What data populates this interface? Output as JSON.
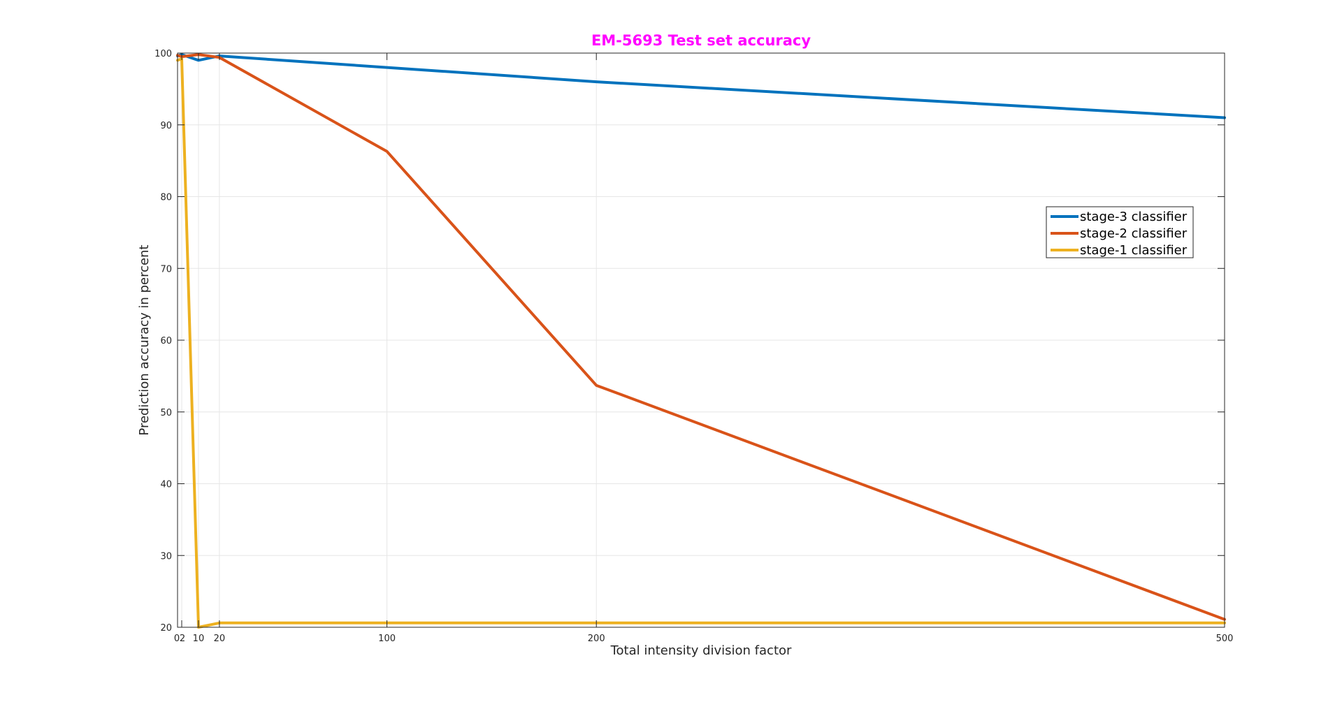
{
  "chart_data": {
    "type": "line",
    "title": "EM-5693 Test set accuracy",
    "xlabel": "Total intensity division factor",
    "ylabel": "Prediction accuracy in percent",
    "xlim": [
      0,
      500
    ],
    "ylim": [
      20,
      100
    ],
    "xticks": [
      0,
      2,
      10,
      20,
      100,
      200,
      500
    ],
    "xtick_labels": [
      "0",
      "2",
      "10",
      "20",
      "100",
      "200",
      "500"
    ],
    "yticks": [
      20,
      30,
      40,
      50,
      60,
      70,
      80,
      90,
      100
    ],
    "ytick_labels": [
      "20",
      "30",
      "40",
      "50",
      "60",
      "70",
      "80",
      "90",
      "100"
    ],
    "grid": true,
    "legend_position": "top-right",
    "x": [
      0,
      2,
      10,
      20,
      100,
      200,
      500
    ],
    "series": [
      {
        "name": "stage-3 classifier",
        "color": "#0072BD",
        "values": [
          99.6,
          99.8,
          99.0,
          99.6,
          98.0,
          96.0,
          91.0
        ]
      },
      {
        "name": "stage-2 classifier",
        "color": "#D95319",
        "values": [
          99.7,
          99.5,
          99.8,
          99.4,
          86.3,
          53.7,
          21.1
        ]
      },
      {
        "name": "stage-1 classifier",
        "color": "#EDB120",
        "values": [
          99.0,
          99.2,
          20.0,
          20.6,
          20.6,
          20.6,
          20.6
        ]
      }
    ],
    "title_color": "#FF00FF"
  }
}
